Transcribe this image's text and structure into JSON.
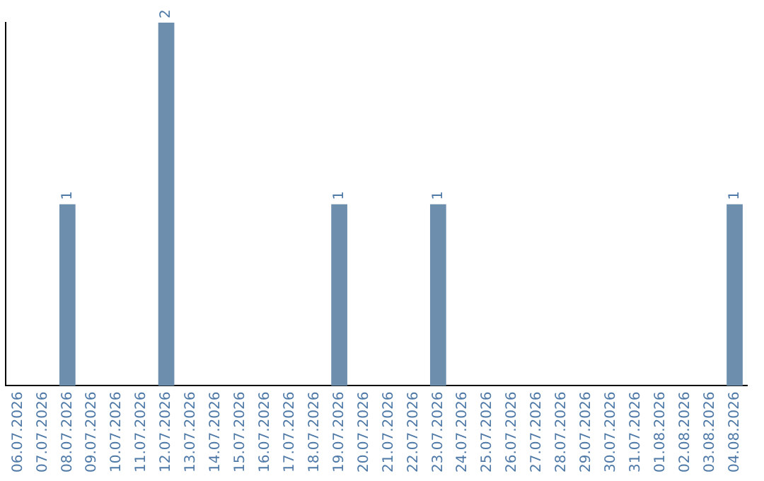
{
  "chart_data": {
    "type": "bar",
    "categories": [
      "06.07.2026",
      "07.07.2026",
      "08.07.2026",
      "09.07.2026",
      "10.07.2026",
      "11.07.2026",
      "12.07.2026",
      "13.07.2026",
      "14.07.2026",
      "15.07.2026",
      "16.07.2026",
      "17.07.2026",
      "18.07.2026",
      "19.07.2026",
      "20.07.2026",
      "21.07.2026",
      "22.07.2026",
      "23.07.2026",
      "24.07.2026",
      "25.07.2026",
      "26.07.2026",
      "27.07.2026",
      "28.07.2026",
      "29.07.2026",
      "30.07.2026",
      "31.07.2026",
      "01.08.2026",
      "02.08.2026",
      "03.08.2026",
      "04.08.2026"
    ],
    "values": [
      0,
      0,
      1,
      0,
      0,
      0,
      2,
      0,
      0,
      0,
      0,
      0,
      0,
      1,
      0,
      0,
      0,
      1,
      0,
      0,
      0,
      0,
      0,
      0,
      0,
      0,
      0,
      0,
      0,
      1
    ],
    "color": "#6d8fad",
    "ylim": [
      0,
      2
    ],
    "value_labels": [
      null,
      null,
      "1",
      null,
      null,
      null,
      "2",
      null,
      null,
      null,
      null,
      null,
      null,
      "1",
      null,
      null,
      null,
      "1",
      null,
      null,
      null,
      null,
      null,
      null,
      null,
      null,
      null,
      null,
      null,
      "1"
    ],
    "grid": false,
    "legend": false,
    "tick_labels": "x"
  }
}
